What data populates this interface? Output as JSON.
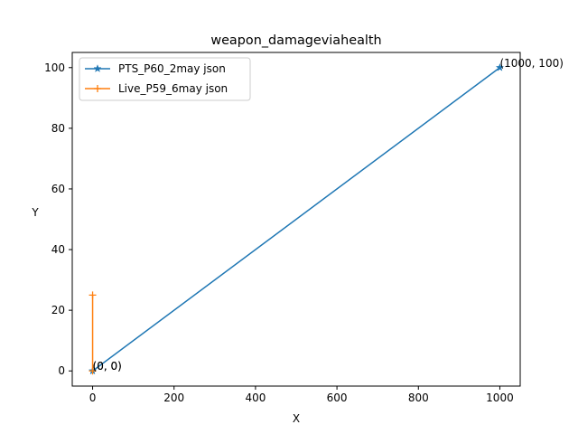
{
  "chart_data": {
    "type": "line",
    "title": "weapon_damageviahealth",
    "xlabel": "X",
    "ylabel": "Y",
    "xlim": [
      -50,
      1050
    ],
    "ylim": [
      -5,
      105
    ],
    "xticks": [
      0,
      200,
      400,
      600,
      800,
      1000
    ],
    "yticks": [
      0,
      20,
      40,
      60,
      80,
      100
    ],
    "xtick_labels": [
      "0",
      "200",
      "400",
      "600",
      "800",
      "1000"
    ],
    "ytick_labels": [
      "0",
      "20",
      "40",
      "60",
      "80",
      "100"
    ],
    "grid": false,
    "legend_position": "top-left",
    "series": [
      {
        "name": "PTS_P60_2may json",
        "color": "#1f77b4",
        "marker": "star",
        "points": [
          [
            0,
            0
          ],
          [
            1000,
            100
          ]
        ]
      },
      {
        "name": "Live_P59_6may json",
        "color": "#ff7f0e",
        "marker": "plus",
        "points": [
          [
            0,
            0
          ],
          [
            0,
            25
          ]
        ]
      }
    ],
    "annotations": [
      {
        "text": "(1000, 100)",
        "x": 1000,
        "y": 100
      },
      {
        "text": "(0, 0)",
        "x": 0,
        "y": 0
      },
      {
        "text": "(0, 0)",
        "x": 0,
        "y": 0
      }
    ]
  }
}
